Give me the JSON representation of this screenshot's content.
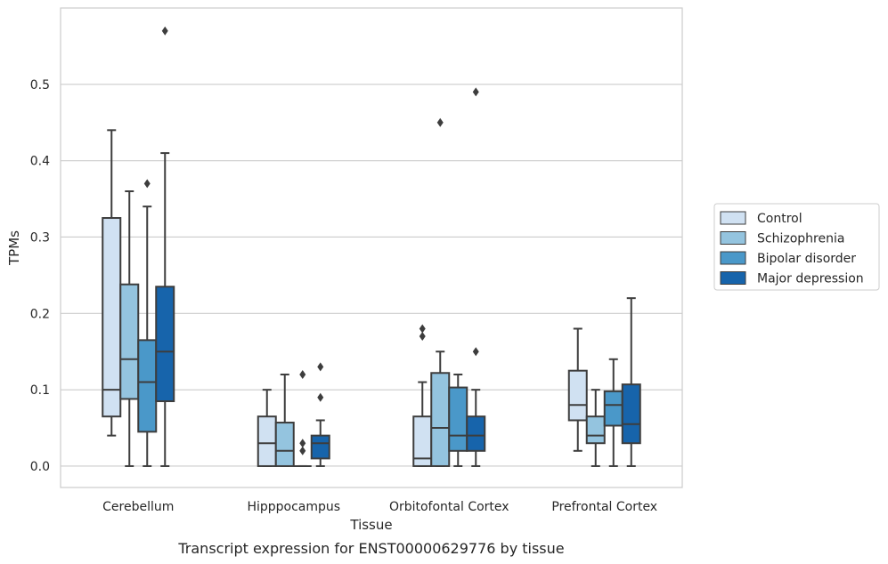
{
  "chart_data": {
    "type": "box",
    "title": "",
    "xlabel": "Tissue",
    "ylabel": "TPMs",
    "caption": "Transcript expression for ENST00000629776 by tissue",
    "ylim": [
      -0.028,
      0.6
    ],
    "yticks": [
      0.0,
      0.1,
      0.2,
      0.3,
      0.4,
      0.5
    ],
    "ytick_labels": [
      "0.0",
      "0.1",
      "0.2",
      "0.3",
      "0.4",
      "0.5"
    ],
    "grid": "horizontal",
    "legend_position": "right",
    "categories": [
      "Cerebellum",
      "Hipppocampus",
      "Orbitofontal Cortex",
      "Prefrontal Cortex"
    ],
    "series": [
      {
        "name": "Control",
        "color": "#d0e1f2",
        "boxes": [
          {
            "whislo": 0.04,
            "q1": 0.065,
            "med": 0.1,
            "q3": 0.325,
            "whishi": 0.44,
            "fliers": []
          },
          {
            "whislo": 0.0,
            "q1": 0.0,
            "med": 0.03,
            "q3": 0.065,
            "whishi": 0.1,
            "fliers": []
          },
          {
            "whislo": 0.0,
            "q1": 0.0,
            "med": 0.01,
            "q3": 0.065,
            "whishi": 0.11,
            "fliers": [
              0.17,
              0.18
            ]
          },
          {
            "whislo": 0.02,
            "q1": 0.06,
            "med": 0.08,
            "q3": 0.125,
            "whishi": 0.18,
            "fliers": []
          }
        ]
      },
      {
        "name": "Schizophrenia",
        "color": "#94c4df",
        "boxes": [
          {
            "whislo": 0.0,
            "q1": 0.088,
            "med": 0.14,
            "q3": 0.238,
            "whishi": 0.36,
            "fliers": []
          },
          {
            "whislo": 0.0,
            "q1": 0.0,
            "med": 0.02,
            "q3": 0.057,
            "whishi": 0.12,
            "fliers": []
          },
          {
            "whislo": 0.0,
            "q1": 0.0,
            "med": 0.05,
            "q3": 0.122,
            "whishi": 0.15,
            "fliers": [
              0.45
            ]
          },
          {
            "whislo": 0.0,
            "q1": 0.03,
            "med": 0.04,
            "q3": 0.065,
            "whishi": 0.1,
            "fliers": []
          }
        ]
      },
      {
        "name": "Bipolar disorder",
        "color": "#4a98c9",
        "boxes": [
          {
            "whislo": 0.0,
            "q1": 0.045,
            "med": 0.11,
            "q3": 0.165,
            "whishi": 0.34,
            "fliers": [
              0.37
            ]
          },
          {
            "whislo": 0.0,
            "q1": 0.0,
            "med": 0.0,
            "q3": 0.0,
            "whishi": 0.0,
            "fliers": [
              0.02,
              0.03,
              0.12
            ]
          },
          {
            "whislo": 0.0,
            "q1": 0.02,
            "med": 0.04,
            "q3": 0.103,
            "whishi": 0.12,
            "fliers": []
          },
          {
            "whislo": 0.0,
            "q1": 0.053,
            "med": 0.08,
            "q3": 0.098,
            "whishi": 0.14,
            "fliers": []
          }
        ]
      },
      {
        "name": "Major depression",
        "color": "#1764ab",
        "boxes": [
          {
            "whislo": 0.0,
            "q1": 0.085,
            "med": 0.15,
            "q3": 0.235,
            "whishi": 0.41,
            "fliers": [
              0.57
            ]
          },
          {
            "whislo": 0.0,
            "q1": 0.01,
            "med": 0.03,
            "q3": 0.04,
            "whishi": 0.06,
            "fliers": [
              0.09,
              0.13
            ]
          },
          {
            "whislo": 0.0,
            "q1": 0.02,
            "med": 0.04,
            "q3": 0.065,
            "whishi": 0.1,
            "fliers": [
              0.15,
              0.49
            ]
          },
          {
            "whislo": 0.0,
            "q1": 0.03,
            "med": 0.055,
            "q3": 0.107,
            "whishi": 0.22,
            "fliers": []
          }
        ]
      }
    ]
  }
}
